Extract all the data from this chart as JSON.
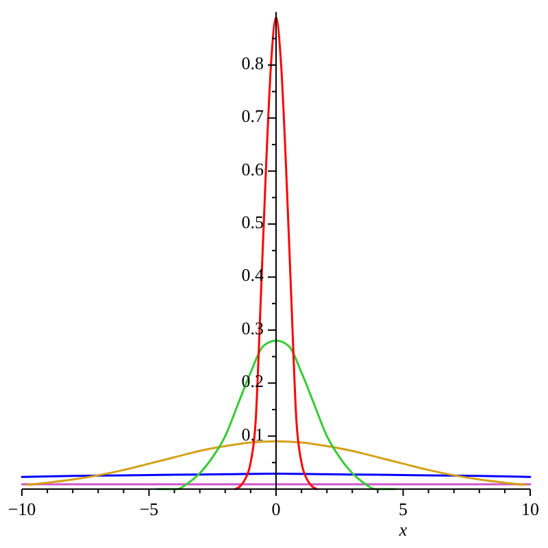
{
  "chart_data": {
    "type": "line",
    "xlabel": "x",
    "xlim": [
      -10,
      10
    ],
    "xticks": [
      {
        "value": -10,
        "label": "−10"
      },
      {
        "value": -9,
        "label": null
      },
      {
        "value": -8,
        "label": null
      },
      {
        "value": -7,
        "label": null
      },
      {
        "value": -6,
        "label": null
      },
      {
        "value": -5,
        "label": "−5"
      },
      {
        "value": -4,
        "label": null
      },
      {
        "value": -3,
        "label": null
      },
      {
        "value": -2,
        "label": null
      },
      {
        "value": -1,
        "label": null
      },
      0,
      {
        "value": 1,
        "label": null
      },
      {
        "value": 2,
        "label": null
      },
      {
        "value": 3,
        "label": null
      },
      {
        "value": 4,
        "label": null
      },
      5,
      {
        "value": 6,
        "label": null
      },
      {
        "value": 7,
        "label": null
      },
      {
        "value": 8,
        "label": null
      },
      {
        "value": 9,
        "label": null
      },
      10
    ],
    "ylim": [
      0,
      0.9
    ],
    "yticks": [
      {
        "value": 0.05,
        "label": null
      },
      0.1,
      {
        "value": 0.15,
        "label": null
      },
      0.2,
      {
        "value": 0.25,
        "label": null
      },
      0.3,
      {
        "value": 0.35,
        "label": null
      },
      0.4,
      {
        "value": 0.45,
        "label": null
      },
      0.5,
      {
        "value": 0.55,
        "label": null
      },
      0.6,
      {
        "value": 0.65,
        "label": null
      },
      0.7,
      {
        "value": 0.75,
        "label": null
      },
      0.8,
      {
        "value": 0.85,
        "label": null
      }
    ],
    "series": [
      {
        "color": "#cc55cc",
        "x": [
          -10,
          -5,
          0,
          5,
          10
        ],
        "values": [
          0.009,
          0.009,
          0.009,
          0.009,
          0.009
        ]
      },
      {
        "color": "#0000ff",
        "x": [
          -10,
          -8,
          -6,
          -4,
          -2,
          0,
          2,
          4,
          6,
          8,
          10
        ],
        "values": [
          0.023,
          0.025,
          0.026,
          0.027,
          0.028,
          0.029,
          0.028,
          0.027,
          0.026,
          0.025,
          0.023
        ]
      },
      {
        "color": "#d4a017",
        "x": [
          -9.8,
          -9,
          -8,
          -7,
          -6,
          -5,
          -4,
          -3,
          -2,
          -1,
          0,
          1,
          2,
          3,
          4,
          5,
          6,
          7,
          8,
          9,
          9.8
        ],
        "values": [
          0.008,
          0.012,
          0.018,
          0.026,
          0.036,
          0.048,
          0.06,
          0.072,
          0.081,
          0.088,
          0.09,
          0.088,
          0.081,
          0.072,
          0.06,
          0.048,
          0.036,
          0.026,
          0.018,
          0.012,
          0.008
        ]
      },
      {
        "color": "#33cc33",
        "x": [
          -4.7,
          -3.9,
          -3.5,
          -3,
          -2.5,
          -2,
          -1.5,
          -1,
          -0.5,
          0,
          0.5,
          1,
          1.5,
          2,
          2.5,
          3,
          3.5,
          3.9,
          4.7
        ],
        "values": [
          0,
          0,
          0.01,
          0.03,
          0.06,
          0.1,
          0.16,
          0.22,
          0.27,
          0.28,
          0.27,
          0.22,
          0.16,
          0.1,
          0.06,
          0.03,
          0.01,
          0,
          0
        ]
      },
      {
        "color": "#ff0000",
        "x": [
          -1.6,
          -1.4,
          -1.2,
          -1,
          -0.8,
          -0.6,
          -0.4,
          -0.2,
          0,
          0.2,
          0.4,
          0.6,
          0.8,
          1,
          1.2,
          1.4,
          1.6
        ],
        "values": [
          0,
          0.006,
          0.02,
          0.05,
          0.13,
          0.36,
          0.6,
          0.8,
          0.89,
          0.8,
          0.6,
          0.36,
          0.13,
          0.05,
          0.02,
          0.006,
          0
        ]
      }
    ]
  }
}
